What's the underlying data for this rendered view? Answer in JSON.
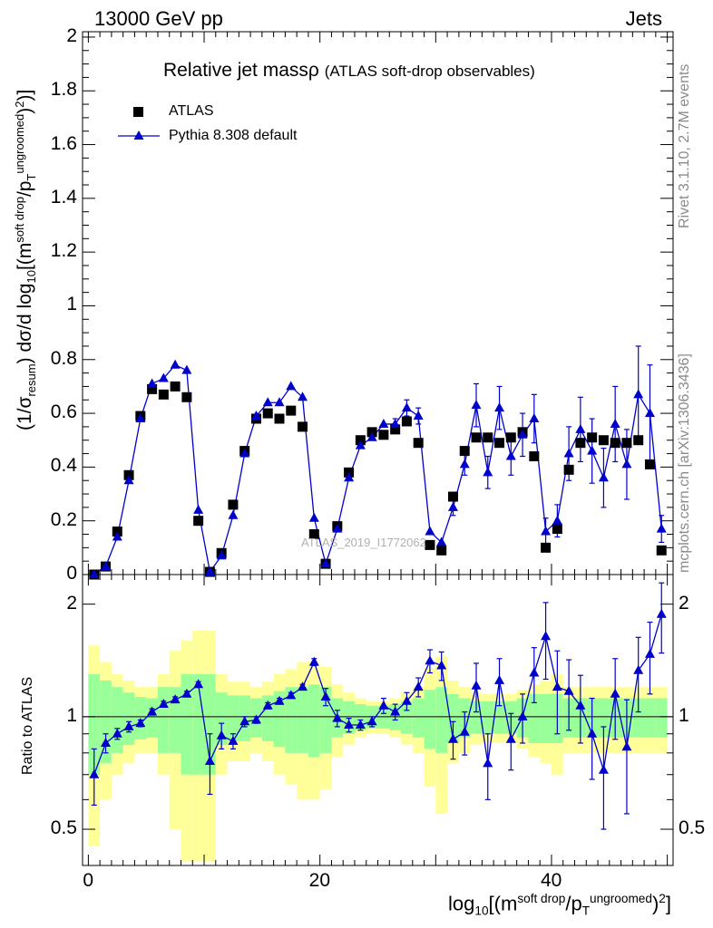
{
  "header": {
    "left": "13000 GeV pp",
    "right": "Jets"
  },
  "side_labels": {
    "rivet": "Rivet 3.1.10,  2.7M events",
    "mcplots": "mcplots.cern.ch [arXiv:1306.3436]"
  },
  "watermark": "ATLAS_2019_I1772062",
  "chart_data": {
    "type": "scatter",
    "title_main": "Relative jet mass",
    "title_rho": "ρ",
    "title_paren": "(ATLAS soft-drop observables)",
    "ylabel_main_html": "(1/σ<sub>resum</sub>) dσ/d log<sub>10</sub>[(m<sup>soft drop</sup>/p<sub>T</sub><sup>ungroomed</sup>)<sup>2</sup>)]",
    "ylabel_ratio": "Ratio to ATLAS",
    "xlabel_html": "log<sub>10</sub>[(m<sup>soft drop</sup>/p<sub>T</sub><sup>ungroomed</sup>)<sup>2</sup>]",
    "xlim": [
      -0.5,
      50.5
    ],
    "ylim_main": [
      0,
      2.02
    ],
    "ylim_ratio_log": [
      0.4,
      2.4
    ],
    "x_ticks_major": [
      0,
      20,
      40
    ],
    "y_ticks_main": [
      0,
      0.2,
      0.4,
      0.6,
      0.8,
      1,
      1.2,
      1.4,
      1.6,
      1.8,
      2
    ],
    "y_ticks_main_labels": [
      "0",
      "0.2",
      "0.4",
      "0.6",
      "0.8",
      "1",
      "1.2",
      "1.4",
      "1.6",
      "1.8",
      "2"
    ],
    "y_ticks_ratio_labeled": [
      0.5,
      1,
      2
    ],
    "y_ticks_ratio_labels": [
      "0.5",
      "1",
      "2"
    ],
    "legend": [
      {
        "label": "ATLAS",
        "marker": "square",
        "color": "#000000"
      },
      {
        "label": "Pythia 8.308 default",
        "marker": "triangle",
        "color": "#0000cc"
      }
    ],
    "x": [
      0.5,
      1.5,
      2.5,
      3.5,
      4.5,
      5.5,
      6.5,
      7.5,
      8.5,
      9.5,
      10.5,
      11.5,
      12.5,
      13.5,
      14.5,
      15.5,
      16.5,
      17.5,
      18.5,
      19.5,
      20.5,
      21.5,
      22.5,
      23.5,
      24.5,
      25.5,
      26.5,
      27.5,
      28.5,
      29.5,
      30.5,
      31.5,
      32.5,
      33.5,
      34.5,
      35.5,
      36.5,
      37.5,
      38.5,
      39.5,
      40.5,
      41.5,
      42.5,
      43.5,
      44.5,
      45.5,
      46.5,
      47.5,
      48.5,
      49.5
    ],
    "series": [
      {
        "name": "ATLAS",
        "values": [
          0.0,
          0.03,
          0.16,
          0.37,
          0.59,
          0.69,
          0.67,
          0.7,
          0.66,
          0.2,
          0.01,
          0.08,
          0.26,
          0.46,
          0.58,
          0.6,
          0.58,
          0.61,
          0.55,
          0.15,
          0.04,
          0.18,
          0.38,
          0.5,
          0.53,
          0.52,
          0.54,
          0.57,
          0.49,
          0.11,
          0.09,
          0.29,
          0.46,
          0.51,
          0.51,
          0.49,
          0.51,
          0.53,
          0.44,
          0.1,
          0.17,
          0.39,
          0.49,
          0.51,
          0.5,
          0.49,
          0.49,
          0.5,
          0.41,
          0.09
        ]
      },
      {
        "name": "Pythia 8.308 default",
        "values": [
          0.0,
          0.03,
          0.14,
          0.35,
          0.58,
          0.71,
          0.73,
          0.78,
          0.76,
          0.24,
          0.01,
          0.07,
          0.22,
          0.45,
          0.59,
          0.64,
          0.64,
          0.7,
          0.66,
          0.21,
          0.04,
          0.17,
          0.36,
          0.48,
          0.51,
          0.56,
          0.56,
          0.62,
          0.59,
          0.16,
          0.12,
          0.25,
          0.41,
          0.63,
          0.38,
          0.62,
          0.44,
          0.52,
          0.58,
          0.16,
          0.2,
          0.45,
          0.54,
          0.46,
          0.36,
          0.56,
          0.41,
          0.67,
          0.6,
          0.17
        ],
        "errors": [
          0.0,
          0.0,
          0.01,
          0.01,
          0.01,
          0.01,
          0.01,
          0.01,
          0.01,
          0.01,
          0.0,
          0.0,
          0.01,
          0.01,
          0.01,
          0.01,
          0.01,
          0.01,
          0.01,
          0.01,
          0.0,
          0.01,
          0.01,
          0.01,
          0.01,
          0.01,
          0.02,
          0.03,
          0.03,
          0.01,
          0.01,
          0.03,
          0.04,
          0.08,
          0.06,
          0.08,
          0.07,
          0.08,
          0.09,
          0.05,
          0.06,
          0.1,
          0.12,
          0.12,
          0.11,
          0.14,
          0.13,
          0.18,
          0.18,
          0.05
        ]
      }
    ],
    "ratio": [
      0.7,
      0.85,
      0.9,
      0.94,
      0.96,
      1.03,
      1.08,
      1.11,
      1.15,
      1.22,
      0.76,
      0.89,
      0.86,
      0.97,
      0.98,
      1.07,
      1.1,
      1.14,
      1.2,
      1.4,
      1.13,
      0.99,
      0.95,
      0.95,
      0.97,
      1.07,
      1.03,
      1.1,
      1.2,
      1.41,
      1.37,
      0.87,
      0.91,
      1.21,
      0.75,
      1.25,
      0.87,
      1.0,
      1.31,
      1.64,
      1.2,
      1.17,
      1.07,
      0.9,
      0.72,
      1.15,
      0.83,
      1.33,
      1.47,
      1.88
    ],
    "ratio_err": [
      0.12,
      0.05,
      0.03,
      0.03,
      0.02,
      0.02,
      0.02,
      0.02,
      0.02,
      0.02,
      0.14,
      0.07,
      0.04,
      0.03,
      0.02,
      0.02,
      0.02,
      0.02,
      0.02,
      0.03,
      0.06,
      0.05,
      0.04,
      0.03,
      0.03,
      0.05,
      0.05,
      0.06,
      0.07,
      0.1,
      0.12,
      0.1,
      0.12,
      0.18,
      0.15,
      0.18,
      0.15,
      0.15,
      0.22,
      0.38,
      0.3,
      0.25,
      0.22,
      0.22,
      0.22,
      0.28,
      0.28,
      0.3,
      0.32,
      0.4
    ],
    "band_inner": [
      0.3,
      0.25,
      0.2,
      0.16,
      0.13,
      0.12,
      0.2,
      0.2,
      0.3,
      0.3,
      0.3,
      0.16,
      0.14,
      0.14,
      0.12,
      0.14,
      0.17,
      0.2,
      0.2,
      0.22,
      0.2,
      0.12,
      0.1,
      0.08,
      0.07,
      0.07,
      0.08,
      0.1,
      0.12,
      0.18,
      0.2,
      0.15,
      0.12,
      0.1,
      0.1,
      0.1,
      0.1,
      0.12,
      0.15,
      0.15,
      0.15,
      0.12,
      0.12,
      0.12,
      0.12,
      0.12,
      0.12,
      0.12,
      0.12,
      0.12
    ],
    "band_outer": [
      0.55,
      0.4,
      0.3,
      0.25,
      0.2,
      0.2,
      0.3,
      0.5,
      0.6,
      0.7,
      0.7,
      0.3,
      0.24,
      0.24,
      0.2,
      0.24,
      0.3,
      0.34,
      0.4,
      0.4,
      0.36,
      0.22,
      0.16,
      0.12,
      0.1,
      0.1,
      0.12,
      0.16,
      0.2,
      0.35,
      0.45,
      0.25,
      0.2,
      0.16,
      0.15,
      0.15,
      0.15,
      0.18,
      0.22,
      0.25,
      0.3,
      0.2,
      0.2,
      0.2,
      0.2,
      0.2,
      0.2,
      0.2,
      0.2,
      0.2
    ]
  }
}
